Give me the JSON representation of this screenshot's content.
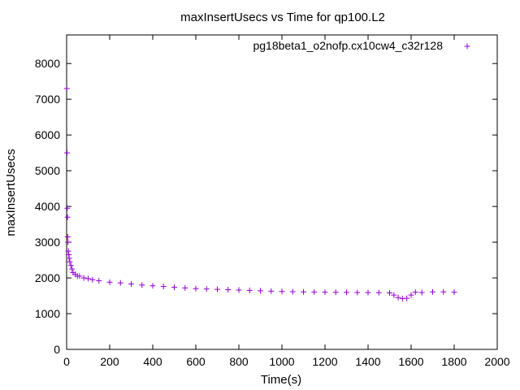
{
  "chart_data": {
    "type": "scatter",
    "title": "maxInsertUsecs vs Time for qp100.L2",
    "xlabel": "Time(s)",
    "ylabel": "maxInsertUsecs",
    "xlim": [
      0,
      2000
    ],
    "ylim": [
      0,
      8800
    ],
    "x_ticks": [
      "0",
      "200",
      "400",
      "600",
      "800",
      "1000",
      "1200",
      "1400",
      "1600",
      "1800",
      "2000"
    ],
    "y_ticks": [
      "0",
      "1000",
      "2000",
      "3000",
      "4000",
      "5000",
      "6000",
      "7000",
      "8000"
    ],
    "grid": false,
    "legend_position": "top-right",
    "marker_color": "#9400d3",
    "series": [
      {
        "name": "pg18beta1_o2nofp.cx10cw4_c32r128",
        "x": [
          1,
          2,
          3,
          4,
          5,
          6,
          8,
          10,
          12,
          15,
          20,
          25,
          30,
          40,
          50,
          60,
          80,
          100,
          120,
          150,
          200,
          250,
          300,
          350,
          400,
          450,
          500,
          550,
          600,
          650,
          700,
          750,
          800,
          850,
          900,
          950,
          1000,
          1050,
          1100,
          1150,
          1200,
          1250,
          1300,
          1350,
          1400,
          1450,
          1500,
          1520,
          1540,
          1560,
          1580,
          1600,
          1620,
          1650,
          1700,
          1750,
          1800
        ],
        "y": [
          7300,
          5500,
          3950,
          3700,
          3150,
          3000,
          2750,
          2650,
          2550,
          2450,
          2350,
          2250,
          2150,
          2100,
          2050,
          2050,
          2000,
          1980,
          1950,
          1920,
          1880,
          1860,
          1830,
          1800,
          1780,
          1760,
          1740,
          1720,
          1700,
          1690,
          1680,
          1670,
          1660,
          1650,
          1640,
          1630,
          1620,
          1615,
          1610,
          1605,
          1600,
          1598,
          1595,
          1592,
          1590,
          1588,
          1580,
          1520,
          1450,
          1420,
          1430,
          1520,
          1600,
          1590,
          1610,
          1610,
          1600
        ]
      }
    ]
  }
}
